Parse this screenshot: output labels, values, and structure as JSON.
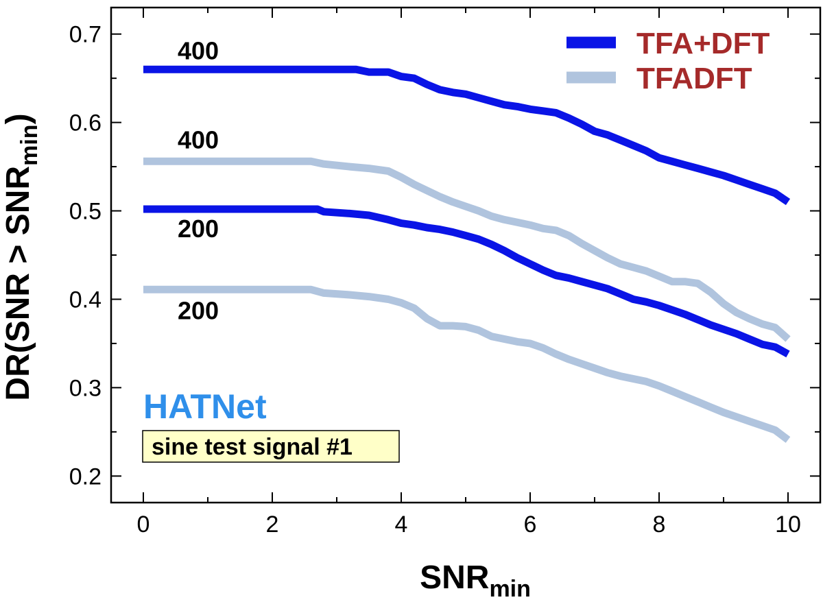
{
  "chart_data": {
    "type": "line",
    "title": "",
    "xlabel": "SNR",
    "xlabel_sub": "min",
    "ylabel": "DR(SNR > SNR",
    "ylabel_sub": "min",
    "ylabel_tail": ")",
    "xlim": [
      -0.5,
      10.5
    ],
    "ylim": [
      0.17,
      0.73
    ],
    "xticks": [
      0,
      2,
      4,
      6,
      8,
      10
    ],
    "xtick_labels": [
      "0",
      "2",
      "4",
      "6",
      "8",
      "10"
    ],
    "yticks": [
      0.2,
      0.3,
      0.4,
      0.5,
      0.6,
      0.7
    ],
    "ytick_labels": [
      "0.2",
      "0.3",
      "0.4",
      "0.5",
      "0.6",
      "0.7"
    ],
    "grid": false,
    "legend": [
      {
        "label": "TFA+DFT",
        "color": "#0a14e6",
        "text_color": "#a52a2a"
      },
      {
        "label": "TFADFT",
        "color": "#b0c4de",
        "text_color": "#a52a2a"
      }
    ],
    "legend_position": "top-right",
    "series": [
      {
        "name": "TFA+DFT",
        "label": "400",
        "color": "#0a14e6",
        "x": [
          0,
          1,
          2,
          3,
          3.3,
          3.5,
          3.8,
          4.0,
          4.2,
          4.4,
          4.6,
          4.8,
          5.0,
          5.2,
          5.4,
          5.6,
          5.8,
          6.0,
          6.2,
          6.4,
          6.6,
          6.8,
          7.0,
          7.2,
          7.4,
          7.6,
          7.8,
          8.0,
          8.2,
          8.4,
          8.6,
          8.8,
          9.0,
          9.2,
          9.4,
          9.6,
          9.8,
          10.0
        ],
        "y": [
          0.66,
          0.66,
          0.66,
          0.66,
          0.66,
          0.657,
          0.657,
          0.652,
          0.65,
          0.643,
          0.637,
          0.634,
          0.632,
          0.628,
          0.624,
          0.62,
          0.618,
          0.615,
          0.613,
          0.611,
          0.605,
          0.598,
          0.59,
          0.586,
          0.58,
          0.574,
          0.568,
          0.56,
          0.556,
          0.552,
          0.548,
          0.544,
          0.54,
          0.535,
          0.53,
          0.525,
          0.52,
          0.51
        ]
      },
      {
        "name": "TFADFT",
        "label": "400",
        "color": "#b0c4de",
        "x": [
          0,
          1,
          2,
          2.6,
          2.8,
          3.2,
          3.5,
          3.8,
          4.0,
          4.2,
          4.4,
          4.6,
          4.8,
          5.0,
          5.2,
          5.4,
          5.6,
          5.8,
          6.0,
          6.2,
          6.4,
          6.6,
          6.8,
          7.0,
          7.2,
          7.4,
          7.6,
          7.8,
          8.0,
          8.2,
          8.4,
          8.6,
          8.8,
          9.0,
          9.2,
          9.4,
          9.6,
          9.8,
          10.0
        ],
        "y": [
          0.556,
          0.556,
          0.556,
          0.556,
          0.553,
          0.55,
          0.548,
          0.545,
          0.538,
          0.53,
          0.523,
          0.516,
          0.51,
          0.505,
          0.5,
          0.494,
          0.49,
          0.487,
          0.484,
          0.48,
          0.478,
          0.472,
          0.463,
          0.455,
          0.447,
          0.44,
          0.436,
          0.432,
          0.426,
          0.42,
          0.42,
          0.418,
          0.408,
          0.395,
          0.385,
          0.378,
          0.372,
          0.368,
          0.355
        ]
      },
      {
        "name": "TFA+DFT",
        "label": "200",
        "color": "#0a14e6",
        "x": [
          0,
          1,
          2,
          2.7,
          2.8,
          3.2,
          3.5,
          3.8,
          4.0,
          4.2,
          4.4,
          4.6,
          4.8,
          5.0,
          5.2,
          5.4,
          5.6,
          5.8,
          6.0,
          6.2,
          6.4,
          6.6,
          6.8,
          7.0,
          7.2,
          7.4,
          7.6,
          7.8,
          8.0,
          8.2,
          8.4,
          8.6,
          8.8,
          9.0,
          9.2,
          9.4,
          9.6,
          9.8,
          10.0
        ],
        "y": [
          0.502,
          0.502,
          0.502,
          0.502,
          0.499,
          0.497,
          0.495,
          0.49,
          0.486,
          0.484,
          0.481,
          0.479,
          0.476,
          0.472,
          0.468,
          0.462,
          0.455,
          0.447,
          0.44,
          0.433,
          0.427,
          0.424,
          0.42,
          0.416,
          0.412,
          0.406,
          0.4,
          0.397,
          0.393,
          0.388,
          0.383,
          0.377,
          0.371,
          0.366,
          0.361,
          0.355,
          0.349,
          0.346,
          0.338
        ]
      },
      {
        "name": "TFADFT",
        "label": "200",
        "color": "#b0c4de",
        "x": [
          0,
          1,
          2,
          2.6,
          2.8,
          3.2,
          3.5,
          3.8,
          4.0,
          4.2,
          4.4,
          4.6,
          4.8,
          5.0,
          5.2,
          5.4,
          5.6,
          5.8,
          6.0,
          6.2,
          6.4,
          6.6,
          6.8,
          7.0,
          7.2,
          7.4,
          7.6,
          7.8,
          8.0,
          8.2,
          8.4,
          8.6,
          8.8,
          9.0,
          9.2,
          9.4,
          9.6,
          9.8,
          10.0
        ],
        "y": [
          0.411,
          0.411,
          0.411,
          0.411,
          0.407,
          0.405,
          0.403,
          0.4,
          0.396,
          0.39,
          0.378,
          0.37,
          0.37,
          0.369,
          0.365,
          0.358,
          0.355,
          0.352,
          0.35,
          0.345,
          0.338,
          0.332,
          0.327,
          0.322,
          0.317,
          0.313,
          0.31,
          0.307,
          0.302,
          0.296,
          0.29,
          0.284,
          0.278,
          0.272,
          0.267,
          0.262,
          0.257,
          0.252,
          0.241
        ]
      }
    ],
    "annotations": {
      "network_label": "HATNet",
      "network_color": "#2f8fea",
      "box_text": "sine test signal #1",
      "box_color": "#ffffc8"
    }
  }
}
